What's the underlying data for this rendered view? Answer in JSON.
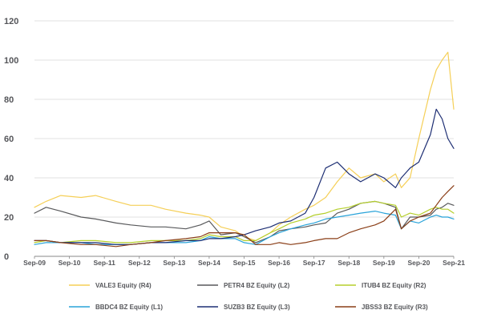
{
  "chart_data": {
    "type": "line",
    "ylim": [
      0,
      120
    ],
    "y_ticks": [
      0,
      20,
      40,
      60,
      80,
      100,
      120
    ],
    "x_range": [
      "2009-09",
      "2021-09"
    ],
    "x_ticks": [
      "Sep-09",
      "Sep-10",
      "Sep-11",
      "Sep-12",
      "Sep-13",
      "Sep-14",
      "Sep-15",
      "Sep-16",
      "Sep-17",
      "Sep-18",
      "Sep-19",
      "Sep-20",
      "Sep-21"
    ],
    "grid": "horizontal",
    "legend_position": "bottom",
    "x_dates": [
      "2009-09",
      "2010-01",
      "2010-06",
      "2011-01",
      "2011-06",
      "2012-01",
      "2012-06",
      "2013-01",
      "2013-06",
      "2014-01",
      "2014-06",
      "2014-09",
      "2015-01",
      "2015-06",
      "2015-09",
      "2016-01",
      "2016-06",
      "2016-09",
      "2017-01",
      "2017-06",
      "2017-09",
      "2018-01",
      "2018-05",
      "2018-09",
      "2019-01",
      "2019-06",
      "2019-09",
      "2020-01",
      "2020-03",
      "2020-06",
      "2020-09",
      "2021-01",
      "2021-03",
      "2021-05",
      "2021-07",
      "2021-09"
    ],
    "series": [
      {
        "name": "VALE3 Equity (R4)",
        "color": "#f5cf57",
        "values": [
          25,
          28,
          31,
          30,
          31,
          28,
          26,
          26,
          24,
          22,
          21,
          20,
          15,
          13,
          10,
          8,
          12,
          16,
          20,
          24,
          26,
          30,
          38,
          45,
          40,
          42,
          38,
          42,
          35,
          40,
          60,
          85,
          95,
          100,
          104,
          75
        ]
      },
      {
        "name": "PETR4 BZ Equity (L2)",
        "color": "#58595b",
        "values": [
          22,
          25,
          23,
          20,
          19,
          17,
          16,
          15,
          15,
          14,
          16,
          18,
          11,
          12,
          10,
          7,
          10,
          13,
          14,
          15,
          16,
          17,
          22,
          24,
          27,
          28,
          27,
          25,
          14,
          20,
          20,
          21,
          24,
          25,
          27,
          26
        ]
      },
      {
        "name": "ITUB4 BZ Equity (R2)",
        "color": "#b5cf2b",
        "values": [
          7,
          8,
          7,
          8,
          8,
          7,
          7,
          8,
          8,
          8,
          9,
          11,
          10,
          10,
          8,
          8,
          12,
          14,
          17,
          19,
          21,
          22,
          24,
          25,
          27,
          28,
          27,
          26,
          20,
          22,
          21,
          24,
          25,
          24,
          24,
          22
        ]
      },
      {
        "name": "BBDC4 BZ Equity (L1)",
        "color": "#29a3d9",
        "values": [
          6,
          7,
          7,
          7,
          6,
          6,
          6,
          7,
          7,
          7,
          8,
          10,
          9,
          9,
          7,
          6,
          10,
          12,
          14,
          16,
          17,
          19,
          20,
          21,
          22,
          23,
          22,
          21,
          14,
          18,
          17,
          20,
          21,
          20,
          20,
          19
        ]
      },
      {
        "name": "SUZB3 BZ Equity (L3)",
        "color": "#1d2e73",
        "values": [
          8,
          8,
          7,
          7,
          7,
          6,
          6,
          7,
          7,
          8,
          8,
          9,
          9,
          10,
          11,
          13,
          15,
          17,
          18,
          22,
          30,
          45,
          48,
          42,
          38,
          42,
          40,
          35,
          40,
          45,
          48,
          62,
          75,
          70,
          60,
          55
        ]
      },
      {
        "name": "JBSS3 BZ Equity (R3)",
        "color": "#8a3e17",
        "values": [
          8,
          8,
          7,
          6,
          6,
          5,
          6,
          7,
          8,
          9,
          10,
          12,
          12,
          12,
          11,
          6,
          6,
          7,
          6,
          7,
          8,
          9,
          9,
          12,
          14,
          16,
          18,
          24,
          14,
          18,
          20,
          22,
          26,
          30,
          33,
          36
        ]
      }
    ]
  }
}
